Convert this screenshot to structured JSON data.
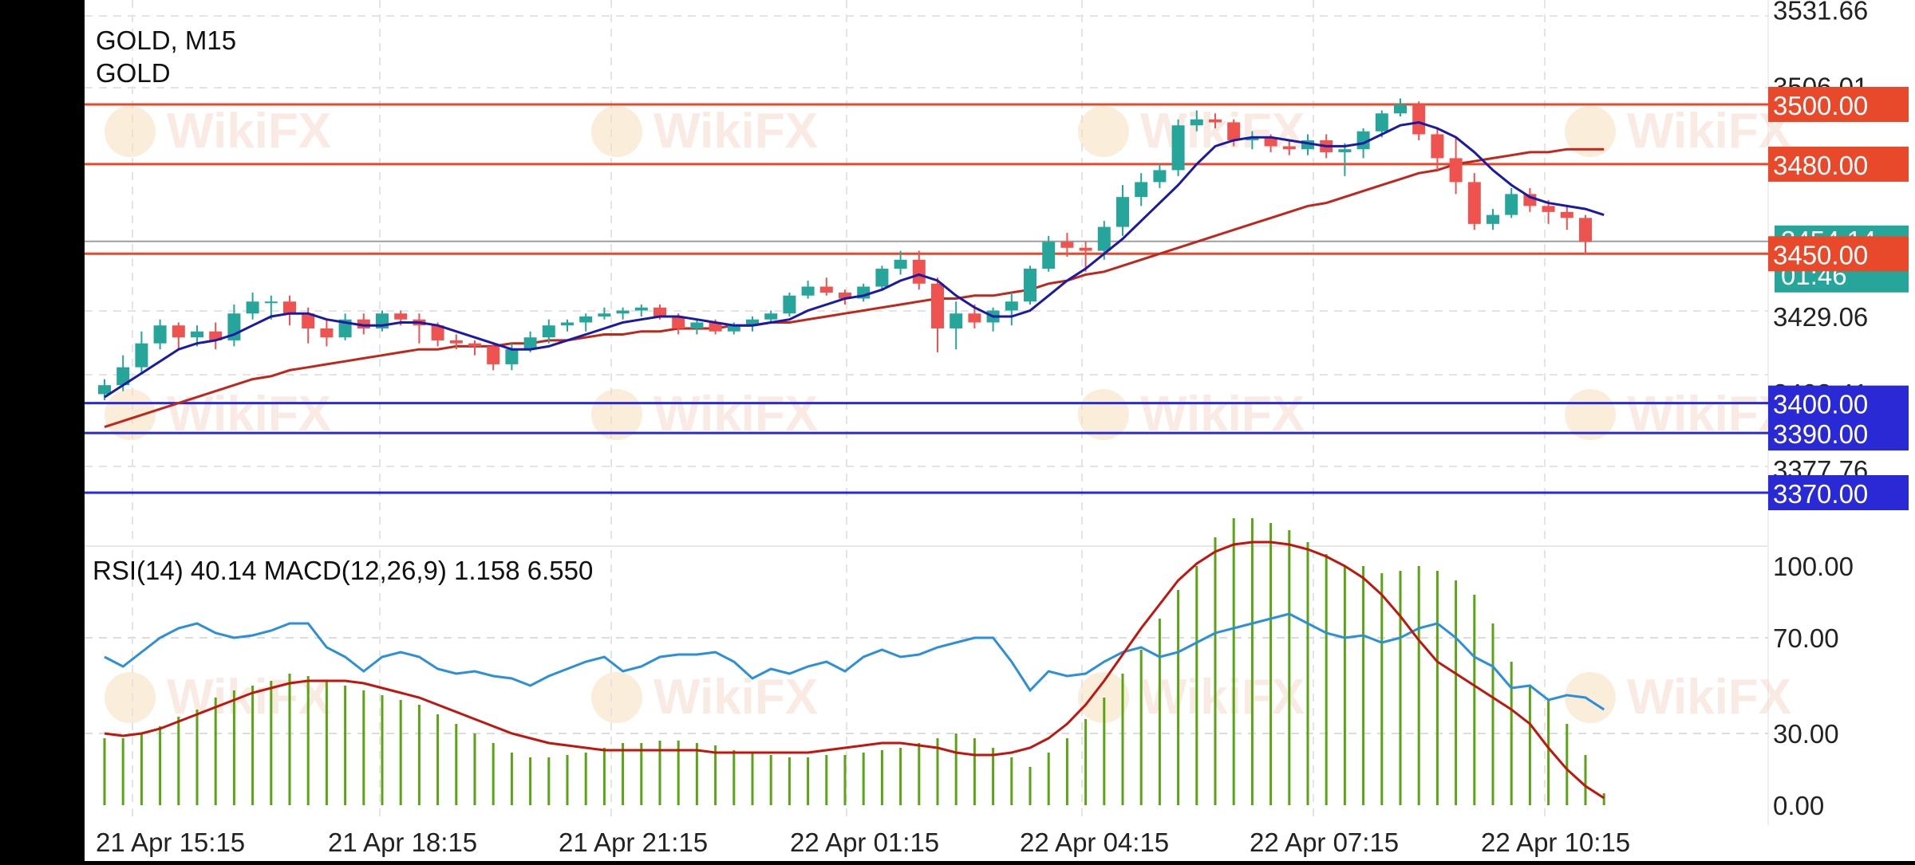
{
  "symbol": "GOLD, M15",
  "symbol_name": "GOLD",
  "watermark": "WikiFX",
  "indicator_label": "RSI(14) 40.14 MACD(12,26,9) 1.158 6.550",
  "price_axis": {
    "labels": [
      "3531.66",
      "3506.01",
      "3429.06",
      "3403.41",
      "3377.76"
    ],
    "current_price": "3454.14",
    "countdown": "01:46"
  },
  "horizontal_levels": [
    {
      "label": "3500.00",
      "color": "#e8492a",
      "kind": "resistance"
    },
    {
      "label": "3480.00",
      "color": "#e8492a",
      "kind": "resistance"
    },
    {
      "label": "3450.00",
      "color": "#e8492a",
      "kind": "resistance"
    },
    {
      "label": "3400.00",
      "color": "#2929d6",
      "kind": "support"
    },
    {
      "label": "3390.00",
      "color": "#2929d6",
      "kind": "support"
    },
    {
      "label": "3370.00",
      "color": "#2929d6",
      "kind": "support"
    }
  ],
  "indicator_axis": {
    "labels": [
      "100.00",
      "70.00",
      "30.00",
      "0.00"
    ]
  },
  "time_axis": {
    "labels": [
      "21 Apr 15:15",
      "21 Apr 18:15",
      "21 Apr 21:15",
      "22 Apr 01:15",
      "22 Apr 04:15",
      "22 Apr 07:15",
      "22 Apr 10:15"
    ]
  },
  "colors": {
    "bull": "#26a69a",
    "bear": "#ef5350",
    "ma_fast": "#1a1aa6",
    "ma_slow": "#c0271c",
    "rsi": "#2b8fd9",
    "macd_hist": "#5aa513",
    "macd_signal": "#c0160e",
    "bid_line": "#9e9e9e",
    "current_price_bg": "#26a69a"
  },
  "chart_data": {
    "type": "candlestick",
    "title": "GOLD, M15",
    "x_labels": [
      "21 Apr 15:15",
      "21 Apr 18:15",
      "21 Apr 21:15",
      "22 Apr 01:15",
      "22 Apr 04:15",
      "22 Apr 07:15",
      "22 Apr 10:15"
    ],
    "ylim": [
      3357,
      3540
    ],
    "candles": [
      [
        3403,
        3408,
        3401,
        3406
      ],
      [
        3406,
        3416,
        3404,
        3412
      ],
      [
        3412,
        3424,
        3410,
        3420
      ],
      [
        3420,
        3428,
        3418,
        3426
      ],
      [
        3426,
        3427,
        3418,
        3422
      ],
      [
        3422,
        3426,
        3419,
        3424
      ],
      [
        3424,
        3427,
        3418,
        3421
      ],
      [
        3421,
        3433,
        3419,
        3430
      ],
      [
        3430,
        3437,
        3428,
        3434
      ],
      [
        3434,
        3436,
        3428,
        3434
      ],
      [
        3434,
        3436,
        3426,
        3430
      ],
      [
        3430,
        3432,
        3420,
        3425
      ],
      [
        3425,
        3428,
        3419,
        3422
      ],
      [
        3422,
        3430,
        3421,
        3428
      ],
      [
        3428,
        3430,
        3423,
        3425
      ],
      [
        3425,
        3431,
        3424,
        3430
      ],
      [
        3430,
        3431,
        3426,
        3428
      ],
      [
        3428,
        3430,
        3420,
        3426
      ],
      [
        3426,
        3427,
        3419,
        3421
      ],
      [
        3421,
        3423,
        3418,
        3420
      ],
      [
        3420,
        3421,
        3416,
        3419
      ],
      [
        3419,
        3420,
        3411,
        3413
      ],
      [
        3413,
        3420,
        3411,
        3418
      ],
      [
        3418,
        3424,
        3417,
        3422
      ],
      [
        3422,
        3428,
        3420,
        3426
      ],
      [
        3426,
        3428,
        3424,
        3427
      ],
      [
        3427,
        3430,
        3424,
        3429
      ],
      [
        3429,
        3432,
        3428,
        3430
      ],
      [
        3430,
        3432,
        3428,
        3431
      ],
      [
        3431,
        3433,
        3429,
        3432
      ],
      [
        3432,
        3433,
        3428,
        3429
      ],
      [
        3429,
        3430,
        3423,
        3425
      ],
      [
        3425,
        3428,
        3423,
        3427
      ],
      [
        3427,
        3428,
        3423,
        3424
      ],
      [
        3424,
        3427,
        3423,
        3426
      ],
      [
        3426,
        3429,
        3424,
        3428
      ],
      [
        3428,
        3431,
        3427,
        3430
      ],
      [
        3430,
        3437,
        3429,
        3436
      ],
      [
        3436,
        3441,
        3435,
        3439
      ],
      [
        3439,
        3442,
        3436,
        3437
      ],
      [
        3437,
        3438,
        3433,
        3435
      ],
      [
        3435,
        3440,
        3434,
        3439
      ],
      [
        3439,
        3446,
        3438,
        3445
      ],
      [
        3445,
        3451,
        3443,
        3448
      ],
      [
        3448,
        3451,
        3438,
        3440
      ],
      [
        3440,
        3442,
        3417,
        3425
      ],
      [
        3425,
        3434,
        3418,
        3430
      ],
      [
        3430,
        3433,
        3425,
        3427
      ],
      [
        3427,
        3432,
        3424,
        3431
      ],
      [
        3431,
        3437,
        3426,
        3434
      ],
      [
        3434,
        3446,
        3433,
        3445
      ],
      [
        3445,
        3456,
        3444,
        3454
      ],
      [
        3454,
        3457,
        3449,
        3452
      ],
      [
        3452,
        3454,
        3444,
        3451
      ],
      [
        3451,
        3461,
        3448,
        3459
      ],
      [
        3459,
        3473,
        3456,
        3469
      ],
      [
        3469,
        3477,
        3466,
        3474
      ],
      [
        3474,
        3480,
        3472,
        3478
      ],
      [
        3478,
        3495,
        3476,
        3493
      ],
      [
        3493,
        3498,
        3491,
        3495
      ],
      [
        3495,
        3497,
        3492,
        3494
      ],
      [
        3494,
        3495,
        3486,
        3488
      ],
      [
        3488,
        3491,
        3485,
        3489
      ],
      [
        3489,
        3490,
        3484,
        3486
      ],
      [
        3486,
        3488,
        3483,
        3485
      ],
      [
        3485,
        3490,
        3483,
        3488
      ],
      [
        3488,
        3490,
        3482,
        3484
      ],
      [
        3484,
        3487,
        3476,
        3485
      ],
      [
        3485,
        3492,
        3482,
        3491
      ],
      [
        3491,
        3498,
        3489,
        3497
      ],
      [
        3497,
        3502,
        3496,
        3500
      ],
      [
        3500,
        3501,
        3488,
        3490
      ],
      [
        3490,
        3492,
        3478,
        3482
      ],
      [
        3482,
        3489,
        3470,
        3474
      ],
      [
        3474,
        3477,
        3458,
        3460
      ],
      [
        3460,
        3465,
        3458,
        3463
      ],
      [
        3463,
        3472,
        3462,
        3470
      ],
      [
        3470,
        3472,
        3464,
        3466
      ],
      [
        3466,
        3468,
        3460,
        3464
      ],
      [
        3464,
        3466,
        3458,
        3462
      ],
      [
        3462,
        3463,
        3450,
        3454
      ]
    ],
    "ma_fast": [
      3402,
      3406,
      3410,
      3414,
      3418,
      3420,
      3421,
      3423,
      3426,
      3429,
      3430,
      3430,
      3428,
      3427,
      3426,
      3426,
      3427,
      3427,
      3426,
      3424,
      3422,
      3420,
      3418,
      3418,
      3419,
      3421,
      3423,
      3425,
      3427,
      3428,
      3429,
      3429,
      3428,
      3427,
      3426,
      3426,
      3427,
      3428,
      3431,
      3433,
      3435,
      3436,
      3438,
      3441,
      3443,
      3441,
      3436,
      3432,
      3429,
      3429,
      3431,
      3436,
      3441,
      3445,
      3450,
      3455,
      3461,
      3467,
      3473,
      3480,
      3486,
      3488,
      3489,
      3489,
      3488,
      3487,
      3486,
      3486,
      3487,
      3490,
      3493,
      3494,
      3492,
      3489,
      3484,
      3478,
      3473,
      3469,
      3467,
      3466,
      3465,
      3463
    ],
    "ma_slow": [
      3392,
      3394,
      3396,
      3398,
      3400,
      3402,
      3404,
      3406,
      3408,
      3409,
      3411,
      3412,
      3413,
      3414,
      3415,
      3416,
      3417,
      3418,
      3418,
      3419,
      3419,
      3419,
      3420,
      3420,
      3421,
      3421,
      3422,
      3423,
      3423,
      3424,
      3424,
      3425,
      3425,
      3425,
      3426,
      3426,
      3427,
      3427,
      3428,
      3429,
      3430,
      3431,
      3432,
      3433,
      3434,
      3435,
      3435,
      3436,
      3436,
      3437,
      3438,
      3440,
      3441,
      3443,
      3444,
      3446,
      3448,
      3450,
      3452,
      3454,
      3456,
      3458,
      3460,
      3462,
      3464,
      3466,
      3467,
      3469,
      3471,
      3473,
      3475,
      3477,
      3478,
      3480,
      3481,
      3482,
      3483,
      3484,
      3484,
      3485,
      3485,
      3485
    ],
    "rsi": [
      62,
      58,
      64,
      70,
      74,
      76,
      72,
      70,
      71,
      73,
      76,
      76,
      66,
      62,
      56,
      62,
      64,
      62,
      57,
      55,
      56,
      54,
      53,
      50,
      54,
      57,
      60,
      62,
      56,
      58,
      62,
      63,
      63,
      64,
      60,
      53,
      57,
      55,
      58,
      60,
      56,
      62,
      65,
      62,
      63,
      66,
      68,
      70,
      70,
      60,
      48,
      56,
      54,
      55,
      60,
      64,
      66,
      62,
      64,
      68,
      72,
      74,
      76,
      78,
      80,
      76,
      72,
      70,
      71,
      68,
      70,
      74,
      76,
      70,
      62,
      58,
      49,
      50,
      44,
      46,
      45,
      40
    ],
    "macd_hist": [
      28,
      28,
      30,
      33,
      37,
      40,
      45,
      48,
      50,
      52,
      55,
      54,
      52,
      50,
      48,
      46,
      44,
      42,
      38,
      34,
      30,
      26,
      22,
      20,
      20,
      21,
      22,
      24,
      26,
      26,
      27,
      27,
      26,
      25,
      23,
      22,
      21,
      20,
      20,
      21,
      21,
      22,
      23,
      24,
      26,
      28,
      30,
      28,
      24,
      20,
      16,
      22,
      28,
      36,
      45,
      55,
      65,
      78,
      90,
      100,
      112,
      120,
      120,
      118,
      115,
      110,
      105,
      100,
      100,
      97,
      98,
      100,
      98,
      94,
      88,
      76,
      60,
      50,
      44,
      34,
      21,
      5
    ],
    "macd_signal": [
      30,
      29,
      30,
      32,
      35,
      38,
      41,
      44,
      47,
      49,
      51,
      52,
      52,
      52,
      51,
      49,
      47,
      45,
      42,
      39,
      36,
      33,
      30,
      28,
      26,
      25,
      24,
      23,
      23,
      23,
      23,
      23,
      23,
      22,
      22,
      22,
      22,
      22,
      22,
      23,
      24,
      25,
      26,
      26,
      25,
      24,
      22,
      21,
      21,
      22,
      24,
      28,
      34,
      42,
      52,
      63,
      74,
      84,
      94,
      101,
      106,
      109,
      110,
      110,
      109,
      107,
      104,
      100,
      95,
      88,
      79,
      69,
      60,
      55,
      50,
      45,
      40,
      34,
      24,
      15,
      8,
      3
    ]
  }
}
